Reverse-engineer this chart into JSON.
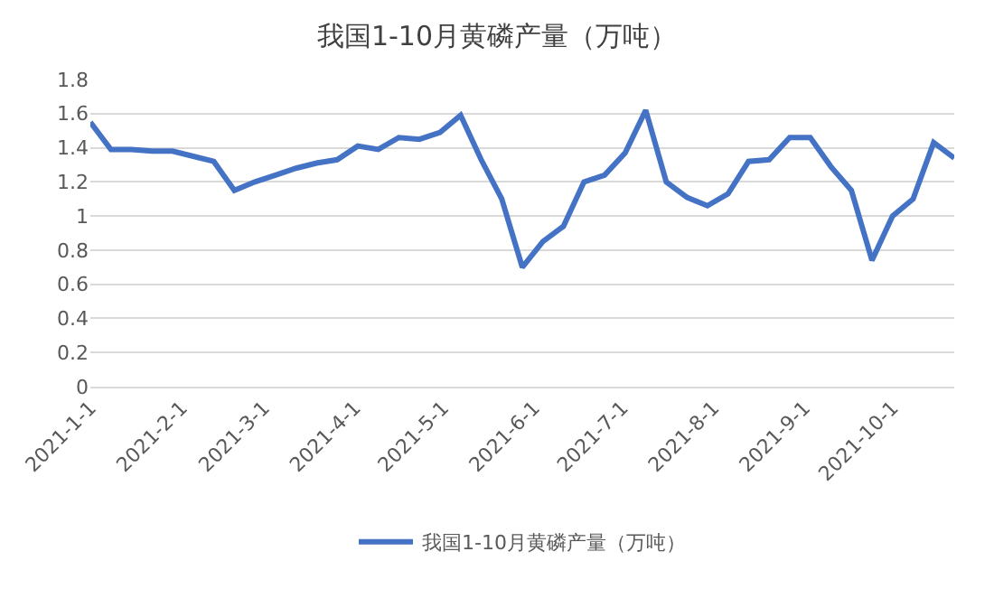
{
  "chart_data": {
    "type": "line",
    "title": "我国1-10月黄磷产量（万吨）",
    "x": [
      "2021-01-01",
      "2021-01-08",
      "2021-01-15",
      "2021-01-22",
      "2021-01-29",
      "2021-02-05",
      "2021-02-12",
      "2021-02-19",
      "2021-02-26",
      "2021-03-05",
      "2021-03-12",
      "2021-03-19",
      "2021-03-26",
      "2021-04-02",
      "2021-04-09",
      "2021-04-16",
      "2021-04-23",
      "2021-04-30",
      "2021-05-07",
      "2021-05-14",
      "2021-05-21",
      "2021-05-28",
      "2021-06-04",
      "2021-06-11",
      "2021-06-18",
      "2021-06-25",
      "2021-07-02",
      "2021-07-09",
      "2021-07-16",
      "2021-07-23",
      "2021-07-30",
      "2021-08-06",
      "2021-08-13",
      "2021-08-20",
      "2021-08-27",
      "2021-09-03",
      "2021-09-10",
      "2021-09-17",
      "2021-09-24",
      "2021-10-01",
      "2021-10-08",
      "2021-10-15",
      "2021-10-22"
    ],
    "series": [
      {
        "name": "我国1-10月黄磷产量（万吨）",
        "color": "#4472c4",
        "values": [
          1.55,
          1.39,
          1.39,
          1.38,
          1.38,
          1.35,
          1.32,
          1.15,
          1.2,
          1.24,
          1.28,
          1.31,
          1.33,
          1.41,
          1.39,
          1.46,
          1.45,
          1.49,
          1.59,
          1.33,
          1.1,
          0.7,
          0.85,
          0.94,
          1.2,
          1.24,
          1.37,
          1.62,
          1.2,
          1.11,
          1.06,
          1.13,
          1.32,
          1.33,
          1.46,
          1.46,
          1.29,
          1.15,
          0.74,
          1.0,
          1.1,
          1.43,
          1.34
        ]
      }
    ],
    "xlim": [
      "2021-01-01",
      "2021-10-22"
    ],
    "xticks": [
      {
        "value": "2021-01-01",
        "label": "2021-1-1"
      },
      {
        "value": "2021-02-01",
        "label": "2021-2-1"
      },
      {
        "value": "2021-03-01",
        "label": "2021-3-1"
      },
      {
        "value": "2021-04-01",
        "label": "2021-4-1"
      },
      {
        "value": "2021-05-01",
        "label": "2021-5-1"
      },
      {
        "value": "2021-06-01",
        "label": "2021-6-1"
      },
      {
        "value": "2021-07-01",
        "label": "2021-7-1"
      },
      {
        "value": "2021-08-01",
        "label": "2021-8-1"
      },
      {
        "value": "2021-09-01",
        "label": "2021-9-1"
      },
      {
        "value": "2021-10-01",
        "label": "2021-10-1"
      }
    ],
    "ylim": [
      0,
      1.8
    ],
    "yticks": [
      0,
      0.2,
      0.4,
      0.6,
      0.8,
      1,
      1.2,
      1.4,
      1.6,
      1.8
    ],
    "grid": "y",
    "legend": "bottom",
    "marker": "none",
    "line_style": "solid"
  }
}
